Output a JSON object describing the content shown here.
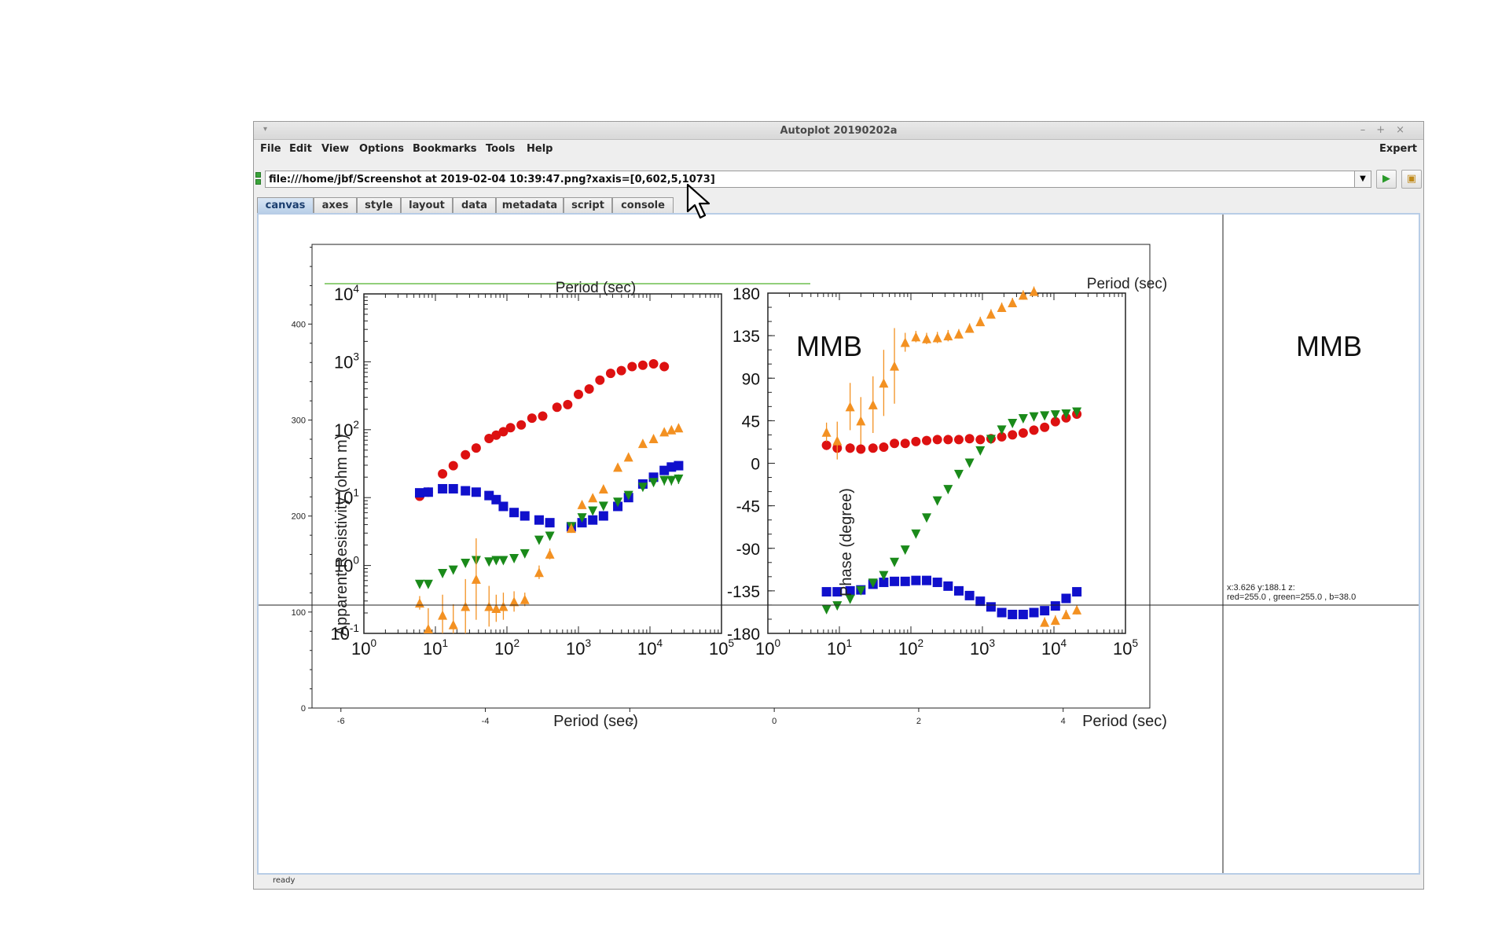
{
  "window": {
    "title": "Autoplot 20190202a",
    "controls": [
      "–",
      "+",
      "×"
    ]
  },
  "menu": {
    "items": [
      "File",
      "Edit",
      "View",
      "Options",
      "Bookmarks",
      "Tools",
      "Help"
    ],
    "expert": "Expert"
  },
  "url": {
    "value": "file:///home/jbf/Screenshot at 2019-02-04 10:39:47.png?xaxis=[0,602,5,1073]"
  },
  "tabs": [
    "canvas",
    "axes",
    "style",
    "layout",
    "data",
    "metadata",
    "script",
    "console"
  ],
  "active_tab": "canvas",
  "status": "ready",
  "readout": {
    "line1": "x:3.626  y:188.1  z:",
    "line2": "red=255.0 , green=255.0 , b=38.0"
  },
  "image_text": {
    "left_top_label": "Period (sec)",
    "left_bottom_label": "Period (sec)",
    "left_ylabel": "Apparent Resistivity (ohm m)",
    "left_station": "MMB",
    "right_top_label": "Period (sec)",
    "right_bottom_label": "Period (sec)",
    "right_ylabel": "Phase (degree)",
    "right_station": "MMB",
    "left_yticks": [
      "10-1",
      "100",
      "101",
      "102",
      "103",
      "104"
    ],
    "right_yticks": [
      "-180",
      "-135",
      "-90",
      "-45",
      "0",
      "45",
      "90",
      "135",
      "180"
    ],
    "xticks": [
      "100",
      "101",
      "102",
      "103",
      "104",
      "105"
    ]
  },
  "chart_data": {
    "type": "scatter",
    "outer_axes": {
      "x_ticks": [
        -6,
        -4,
        -2,
        0,
        2,
        4
      ],
      "y_ticks": [
        0,
        100,
        200,
        300,
        400
      ],
      "xlim": [
        -6.4,
        5.2
      ],
      "ylim": [
        0,
        483
      ]
    },
    "resistivity": {
      "xlim_log": [
        0,
        5
      ],
      "ylim_log": [
        -1,
        4
      ],
      "series": [
        {
          "color": "#dd1111",
          "marker": "circle",
          "points": [
            [
              0.78,
              1.02
            ],
            [
              0.9,
              1.08
            ],
            [
              1.1,
              1.35
            ],
            [
              1.25,
              1.47
            ],
            [
              1.42,
              1.63
            ],
            [
              1.57,
              1.73
            ],
            [
              1.75,
              1.87
            ],
            [
              1.85,
              1.92
            ],
            [
              1.95,
              1.97
            ],
            [
              2.05,
              2.03
            ],
            [
              2.2,
              2.07
            ],
            [
              2.35,
              2.17
            ],
            [
              2.5,
              2.2
            ],
            [
              2.7,
              2.33
            ],
            [
              2.85,
              2.37
            ],
            [
              3.0,
              2.52
            ],
            [
              3.15,
              2.6
            ],
            [
              3.3,
              2.73
            ],
            [
              3.45,
              2.83
            ],
            [
              3.6,
              2.87
            ],
            [
              3.75,
              2.93
            ],
            [
              3.9,
              2.95
            ],
            [
              4.05,
              2.97
            ],
            [
              4.2,
              2.93
            ]
          ],
          "errors": [
            0.03,
            0.03,
            0.03,
            0.03,
            0.03,
            0.03,
            0.03,
            0.03,
            0.03,
            0.03,
            0.03,
            0.03,
            0.03,
            0.03,
            0.03,
            0.03,
            0.03,
            0.03,
            0.03,
            0.03,
            0.03,
            0.03,
            0.05,
            0.07
          ]
        },
        {
          "color": "#1010cc",
          "marker": "square",
          "points": [
            [
              0.78,
              1.07
            ],
            [
              0.9,
              1.08
            ],
            [
              1.1,
              1.13
            ],
            [
              1.25,
              1.13
            ],
            [
              1.42,
              1.1
            ],
            [
              1.57,
              1.08
            ],
            [
              1.75,
              1.03
            ],
            [
              1.85,
              0.97
            ],
            [
              1.95,
              0.87
            ],
            [
              2.1,
              0.78
            ],
            [
              2.25,
              0.73
            ],
            [
              2.45,
              0.67
            ],
            [
              2.6,
              0.63
            ],
            [
              2.9,
              0.57
            ],
            [
              3.05,
              0.63
            ],
            [
              3.2,
              0.67
            ],
            [
              3.35,
              0.73
            ],
            [
              3.55,
              0.87
            ],
            [
              3.7,
              1.0
            ],
            [
              3.9,
              1.2
            ],
            [
              4.05,
              1.3
            ],
            [
              4.2,
              1.4
            ],
            [
              4.3,
              1.45
            ],
            [
              4.4,
              1.47
            ]
          ],
          "errors": [
            0.03,
            0.03,
            0.03,
            0.03,
            0.03,
            0.03,
            0.03,
            0.03,
            0.03,
            0.03,
            0.03,
            0.03,
            0.03,
            0.03,
            0.03,
            0.03,
            0.03,
            0.03,
            0.03,
            0.03,
            0.03,
            0.04,
            0.05,
            0.06
          ]
        },
        {
          "color": "#1a8a1a",
          "marker": "triangle-down",
          "points": [
            [
              0.78,
              -0.28
            ],
            [
              0.9,
              -0.28
            ],
            [
              1.1,
              -0.12
            ],
            [
              1.25,
              -0.07
            ],
            [
              1.42,
              0.03
            ],
            [
              1.57,
              0.07
            ],
            [
              1.75,
              0.05
            ],
            [
              1.85,
              0.07
            ],
            [
              1.95,
              0.07
            ],
            [
              2.1,
              0.1
            ],
            [
              2.25,
              0.17
            ],
            [
              2.45,
              0.37
            ],
            [
              2.6,
              0.43
            ],
            [
              2.9,
              0.57
            ],
            [
              3.05,
              0.7
            ],
            [
              3.2,
              0.8
            ],
            [
              3.35,
              0.87
            ],
            [
              3.55,
              0.93
            ],
            [
              3.7,
              1.03
            ],
            [
              3.9,
              1.15
            ],
            [
              4.05,
              1.22
            ],
            [
              4.2,
              1.25
            ],
            [
              4.3,
              1.25
            ],
            [
              4.4,
              1.27
            ]
          ],
          "errors": [
            0.03,
            0.03,
            0.03,
            0.03,
            0.03,
            0.03,
            0.03,
            0.03,
            0.03,
            0.03,
            0.03,
            0.03,
            0.03,
            0.03,
            0.03,
            0.03,
            0.03,
            0.03,
            0.03,
            0.03,
            0.05,
            0.07,
            0.07,
            0.07
          ]
        },
        {
          "color": "#f39122",
          "marker": "triangle-up",
          "points": [
            [
              0.78,
              -0.55
            ],
            [
              0.9,
              -0.93
            ],
            [
              1.1,
              -0.73
            ],
            [
              1.25,
              -0.87
            ],
            [
              1.42,
              -0.6
            ],
            [
              1.57,
              -0.2
            ],
            [
              1.75,
              -0.6
            ],
            [
              1.85,
              -0.63
            ],
            [
              1.95,
              -0.6
            ],
            [
              2.1,
              -0.53
            ],
            [
              2.25,
              -0.5
            ],
            [
              2.45,
              -0.1
            ],
            [
              2.6,
              0.17
            ],
            [
              2.9,
              0.55
            ],
            [
              3.05,
              0.9
            ],
            [
              3.2,
              1.0
            ],
            [
              3.35,
              1.13
            ],
            [
              3.55,
              1.45
            ],
            [
              3.7,
              1.6
            ],
            [
              3.9,
              1.8
            ],
            [
              4.05,
              1.87
            ],
            [
              4.2,
              1.97
            ],
            [
              4.3,
              2.0
            ],
            [
              4.4,
              2.03
            ]
          ],
          "errors": [
            0.1,
            0.3,
            0.3,
            0.3,
            0.4,
            0.6,
            0.3,
            0.2,
            0.2,
            0.15,
            0.1,
            0.1,
            0.08,
            0.07,
            0.05,
            0.05,
            0.05,
            0.05,
            0.05,
            0.05,
            0.05,
            0.05,
            0.05,
            0.05
          ]
        }
      ]
    },
    "phase": {
      "xlim_log": [
        0,
        5
      ],
      "ylim": [
        -180,
        180
      ],
      "series": [
        {
          "color": "#dd1111",
          "marker": "circle",
          "points": [
            [
              0.82,
              19
            ],
            [
              0.97,
              16
            ],
            [
              1.15,
              16
            ],
            [
              1.3,
              15
            ],
            [
              1.47,
              16
            ],
            [
              1.62,
              17
            ],
            [
              1.77,
              21
            ],
            [
              1.92,
              21
            ],
            [
              2.07,
              23
            ],
            [
              2.22,
              24
            ],
            [
              2.37,
              25
            ],
            [
              2.52,
              25
            ],
            [
              2.67,
              25
            ],
            [
              2.82,
              26
            ],
            [
              2.97,
              25
            ],
            [
              3.12,
              26
            ],
            [
              3.27,
              28
            ],
            [
              3.42,
              30
            ],
            [
              3.57,
              32
            ],
            [
              3.72,
              35
            ],
            [
              3.87,
              38
            ],
            [
              4.02,
              44
            ],
            [
              4.17,
              48
            ],
            [
              4.32,
              52
            ]
          ],
          "errors": [
            5,
            5,
            5,
            5,
            4,
            4,
            4,
            4,
            4,
            4,
            3,
            3,
            3,
            3,
            3,
            3,
            3,
            3,
            3,
            3,
            3,
            3,
            4,
            5
          ]
        },
        {
          "color": "#1010cc",
          "marker": "square",
          "points": [
            [
              0.82,
              -136
            ],
            [
              0.97,
              -136
            ],
            [
              1.15,
              -135
            ],
            [
              1.3,
              -134
            ],
            [
              1.47,
              -128
            ],
            [
              1.62,
              -126
            ],
            [
              1.77,
              -125
            ],
            [
              1.92,
              -125
            ],
            [
              2.07,
              -124
            ],
            [
              2.22,
              -124
            ],
            [
              2.37,
              -126
            ],
            [
              2.52,
              -130
            ],
            [
              2.67,
              -135
            ],
            [
              2.82,
              -140
            ],
            [
              2.97,
              -146
            ],
            [
              3.12,
              -152
            ],
            [
              3.27,
              -158
            ],
            [
              3.42,
              -160
            ],
            [
              3.57,
              -160
            ],
            [
              3.72,
              -158
            ],
            [
              3.87,
              -156
            ],
            [
              4.02,
              -151
            ],
            [
              4.17,
              -143
            ],
            [
              4.32,
              -136
            ]
          ],
          "errors": [
            3,
            3,
            3,
            3,
            3,
            3,
            3,
            3,
            3,
            3,
            3,
            3,
            3,
            3,
            3,
            3,
            3,
            3,
            3,
            3,
            3,
            3,
            3,
            4
          ]
        },
        {
          "color": "#1a8a1a",
          "marker": "triangle-down",
          "points": [
            [
              0.82,
              -155
            ],
            [
              0.97,
              -151
            ],
            [
              1.15,
              -144
            ],
            [
              1.3,
              -135
            ],
            [
              1.47,
              -127
            ],
            [
              1.62,
              -119
            ],
            [
              1.77,
              -105
            ],
            [
              1.92,
              -92
            ],
            [
              2.07,
              -75
            ],
            [
              2.22,
              -58
            ],
            [
              2.37,
              -40
            ],
            [
              2.52,
              -28
            ],
            [
              2.67,
              -12
            ],
            [
              2.82,
              0
            ],
            [
              2.97,
              13
            ],
            [
              3.12,
              25
            ],
            [
              3.27,
              35
            ],
            [
              3.42,
              42
            ],
            [
              3.57,
              47
            ],
            [
              3.72,
              49
            ],
            [
              3.87,
              50
            ],
            [
              4.02,
              51
            ],
            [
              4.17,
              52
            ],
            [
              4.32,
              54
            ]
          ],
          "errors": [
            4,
            4,
            4,
            4,
            4,
            4,
            3,
            3,
            3,
            3,
            3,
            3,
            3,
            3,
            3,
            3,
            3,
            3,
            3,
            3,
            3,
            4,
            5,
            5
          ]
        },
        {
          "color": "#f39122",
          "marker": "triangle-up",
          "points": [
            [
              0.82,
              33
            ],
            [
              0.97,
              24
            ],
            [
              1.15,
              60
            ],
            [
              1.3,
              45
            ],
            [
              1.47,
              62
            ],
            [
              1.62,
              85
            ],
            [
              1.77,
              103
            ],
            [
              1.92,
              128
            ],
            [
              2.07,
              134
            ],
            [
              2.22,
              132
            ],
            [
              2.37,
              133
            ],
            [
              2.52,
              135
            ],
            [
              2.67,
              137
            ],
            [
              2.82,
              143
            ],
            [
              2.97,
              150
            ],
            [
              3.12,
              158
            ],
            [
              3.27,
              165
            ],
            [
              3.42,
              170
            ],
            [
              3.57,
              178
            ],
            [
              3.72,
              182
            ],
            [
              3.87,
              -168
            ],
            [
              4.02,
              -166
            ],
            [
              4.17,
              -160
            ],
            [
              4.32,
              -155
            ]
          ],
          "errors": [
            10,
            20,
            25,
            25,
            30,
            35,
            40,
            10,
            6,
            6,
            6,
            6,
            5,
            5,
            5,
            5,
            5,
            5,
            5,
            5,
            5,
            5,
            5,
            5
          ]
        }
      ]
    }
  }
}
